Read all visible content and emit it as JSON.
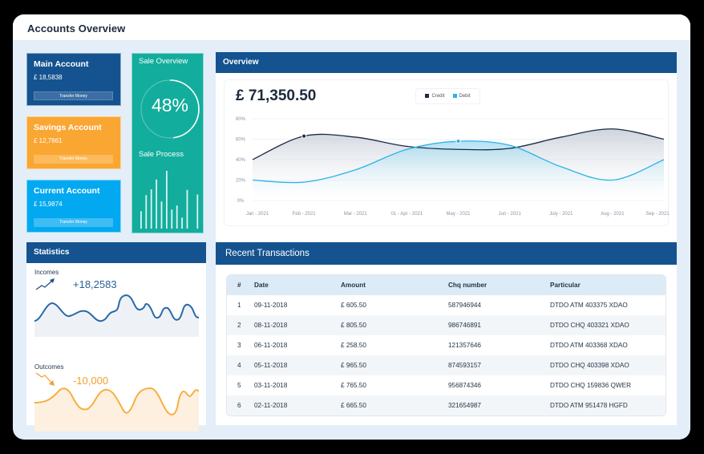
{
  "window": {
    "title": "Accounts Overview"
  },
  "accounts": [
    {
      "name": "Main Account",
      "balance": "£ 18,5838",
      "button": "Transfer Money",
      "color": "#14538f"
    },
    {
      "name": "Savings Account",
      "balance": "£ 12,7861",
      "button": "Transfer Money",
      "color": "#faa633"
    },
    {
      "name": "Current Account",
      "balance": "£ 15,9874",
      "button": "Transfer Money",
      "color": "#03a9f0"
    }
  ],
  "sale": {
    "title": "Sale Overview",
    "percent": "48%",
    "process_title": "Sale Process",
    "bars": [
      30,
      58,
      68,
      85,
      47,
      100,
      33,
      40,
      19,
      67,
      0,
      59
    ],
    "color": "#13ad9d"
  },
  "overview": {
    "title": "Overview",
    "total": "£ 71,350.50",
    "legend": [
      {
        "label": "Credit",
        "color": "#1c2b45"
      },
      {
        "label": "Debit",
        "color": "#2bb3e8"
      }
    ]
  },
  "chart_data": {
    "type": "area",
    "title": "Overview",
    "categories": [
      "Jan - 2021",
      "Feb - 2021",
      "Mar - 2021",
      "01 - Apr - 2021",
      "May - 2021",
      "Jun - 2021",
      "July - 2021",
      "Aug - 2021",
      "Sep - 2021"
    ],
    "series": [
      {
        "name": "Credit",
        "values": [
          40,
          63,
          62,
          53,
          50,
          51,
          62,
          70,
          60
        ],
        "color": "#1c2b45"
      },
      {
        "name": "Debit",
        "values": [
          20,
          18,
          30,
          50,
          58,
          54,
          33,
          20,
          40
        ],
        "color": "#2bb3e8"
      }
    ],
    "yticks": [
      "0%",
      "20%",
      "40%",
      "60%",
      "80%"
    ],
    "ylim": [
      0,
      80
    ],
    "grid": true,
    "legend_position": "top",
    "annotations": [
      {
        "series": "Credit",
        "category": "Feb - 2021",
        "marker": true
      },
      {
        "series": "Debit",
        "category": "May - 2021",
        "marker": true
      }
    ]
  },
  "statistics": {
    "title": "Statistics",
    "incomes": {
      "label": "Incomes",
      "value": "+18,2583",
      "color": "#2a6aa8"
    },
    "outcomes": {
      "label": "Outcomes",
      "value": "-10,000",
      "color": "#f7b040"
    }
  },
  "transactions": {
    "title": "Recent Transactions",
    "columns": [
      "#",
      "Date",
      "Amount",
      "Chq number",
      "Particular"
    ],
    "rows": [
      [
        "1",
        "09-11-2018",
        "£ 605.50",
        "587946944",
        "DTDO ATM 403375 XDAO"
      ],
      [
        "2",
        "08-11-2018",
        "£ 805.50",
        "986746891",
        "DTDO CHQ 403321 XDAO"
      ],
      [
        "3",
        "06-11-2018",
        "£ 258.50",
        "121357646",
        "DTDO ATM 403368 XDAO"
      ],
      [
        "4",
        "05-11-2018",
        "£ 965.50",
        "874593157",
        "DTDO CHQ 403398 XDAO"
      ],
      [
        "5",
        "03-11-2018",
        "£ 765.50",
        "956874346",
        "DTDO CHQ 159836 QWER"
      ],
      [
        "6",
        "02-11-2018",
        "£ 665.50",
        "321654987",
        "DTDO ATM 951478 HGFD"
      ]
    ]
  }
}
